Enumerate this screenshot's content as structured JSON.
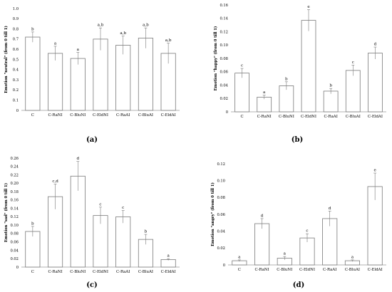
{
  "chart_data": [
    {
      "type": "bar",
      "panel_label": "(a)",
      "ylabel": "Emotion \"neutral\" (from 0 till 1)",
      "categories": [
        "C",
        "C-RaNI",
        "C-BluNI",
        "C-EldNI",
        "C-RaAI",
        "C-BluAI",
        "C-EldAI"
      ],
      "values": [
        0.72,
        0.56,
        0.51,
        0.7,
        0.64,
        0.71,
        0.56
      ],
      "errors": [
        0.05,
        0.07,
        0.06,
        0.11,
        0.09,
        0.1,
        0.1
      ],
      "significance": [
        "b",
        "a",
        "a",
        "a,b",
        "a,b",
        "a,b",
        "a,b"
      ],
      "ylim": [
        0,
        1.0
      ],
      "yticks": [
        "0",
        "0.1",
        "0.2",
        "0.3",
        "0.4",
        "0.5",
        "0.6",
        "0.7",
        "0.8",
        "0.9",
        "1.0"
      ],
      "grid": false
    },
    {
      "type": "bar",
      "panel_label": "(b)",
      "ylabel": "Emotion \"happy\" (from 0 till 1)",
      "categories": [
        "C",
        "C-RaNI",
        "C-BluNI",
        "C-EldNI",
        "C-RaAI",
        "C-BluAI",
        "C-EldAI"
      ],
      "values": [
        0.058,
        0.022,
        0.039,
        0.137,
        0.031,
        0.062,
        0.088
      ],
      "errors": [
        0.007,
        0.003,
        0.006,
        0.016,
        0.004,
        0.008,
        0.009
      ],
      "significance": [
        "c",
        "a",
        "b",
        "e",
        "b",
        "c",
        "d"
      ],
      "ylim": [
        0,
        0.16
      ],
      "yticks": [
        "0",
        "0.02",
        "0.04",
        "0.06",
        "0.08",
        "0.10",
        "0.12",
        "0.14",
        "0.16"
      ],
      "grid": false
    },
    {
      "type": "bar",
      "panel_label": "(c)",
      "ylabel": "Emotion \"sad\" (from 0 till 1)",
      "categories": [
        "C",
        "C-RaNI",
        "C-BluNI",
        "C-EldNI",
        "C-RaAI",
        "C-BluAI",
        "C-EldAI"
      ],
      "values": [
        0.085,
        0.168,
        0.217,
        0.123,
        0.12,
        0.066,
        0.018
      ],
      "errors": [
        0.012,
        0.03,
        0.035,
        0.02,
        0.015,
        0.012,
        0.002
      ],
      "significance": [
        "b",
        "c,d",
        "d",
        "c",
        "c",
        "b",
        "a"
      ],
      "ylim": [
        0,
        0.26
      ],
      "yticks": [
        "0",
        "0.02",
        "0.04",
        "0.06",
        "0.08",
        "0.10",
        "0.12",
        "0.14",
        "0.16",
        "0.18",
        "0.20",
        "0.22",
        "0.24",
        "0.26"
      ],
      "grid": false
    },
    {
      "type": "bar",
      "panel_label": "(d)",
      "ylabel": "Emotion \"angry\" (from 0 till 1)",
      "categories": [
        "C",
        "C-RaNI",
        "C-BluNI",
        "C-EldNI",
        "C-RaAI",
        "C-BluAI",
        "C-EldAI"
      ],
      "values": [
        0.005,
        0.049,
        0.008,
        0.032,
        0.055,
        0.005,
        0.093
      ],
      "errors": [
        0.001,
        0.006,
        0.002,
        0.005,
        0.009,
        0.001,
        0.016
      ],
      "significance": [
        "a",
        "d",
        "a",
        "c",
        "d",
        "a",
        "e"
      ],
      "ylim": [
        0,
        0.12
      ],
      "yticks": [
        "0",
        "0.02",
        "0.04",
        "0.06",
        "0.08",
        "0.10",
        "0.12"
      ],
      "grid": false
    }
  ]
}
